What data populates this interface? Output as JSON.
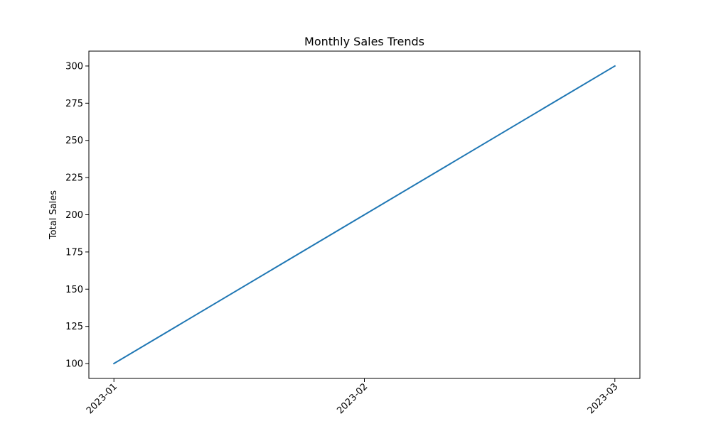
{
  "chart_data": {
    "type": "line",
    "title": "Monthly Sales Trends",
    "xlabel": "",
    "ylabel": "Total Sales",
    "x": [
      "2023-01",
      "2023-02",
      "2023-03"
    ],
    "series": [
      {
        "values": [
          100,
          200,
          300
        ],
        "color": "#1f77b4"
      }
    ],
    "ylim": [
      90,
      310
    ],
    "yticks": [
      100,
      125,
      150,
      175,
      200,
      225,
      250,
      275,
      300
    ],
    "xtick_rotation_deg": 45,
    "grid": false,
    "legend": "none"
  }
}
